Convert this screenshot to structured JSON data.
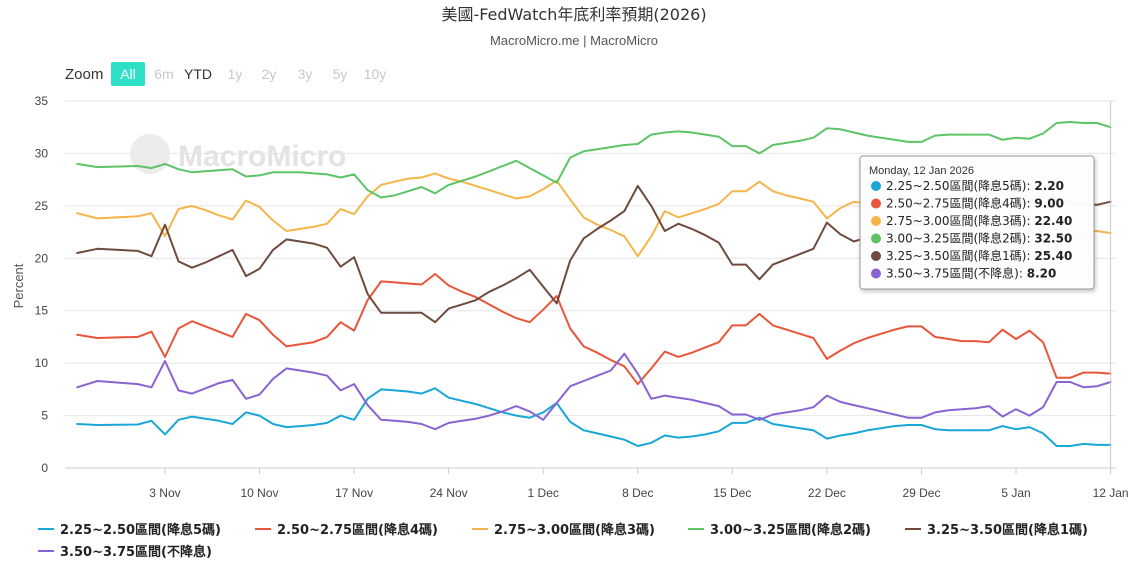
{
  "header": {
    "title": "美國-FedWatch年底利率預期(2026)",
    "subtitle": "MacroMicro.me | MacroMicro"
  },
  "zoom": {
    "label": "Zoom",
    "buttons": [
      {
        "label": "All",
        "active": true,
        "enabled": true
      },
      {
        "label": "6m",
        "active": false,
        "enabled": false
      },
      {
        "label": "YTD",
        "active": false,
        "enabled": true
      },
      {
        "label": "1y",
        "active": false,
        "enabled": false
      },
      {
        "label": "2y",
        "active": false,
        "enabled": false
      },
      {
        "label": "3y",
        "active": false,
        "enabled": false
      },
      {
        "label": "5y",
        "active": false,
        "enabled": false
      },
      {
        "label": "10y",
        "active": false,
        "enabled": false
      }
    ]
  },
  "watermark": "MacroMicro",
  "tooltip": {
    "date": "Monday, 12 Jan 2026",
    "rows": [
      {
        "name": "2.25~2.50區間(降息5碼)",
        "value": "2.20"
      },
      {
        "name": "2.50~2.75區間(降息4碼)",
        "value": "9.00"
      },
      {
        "name": "2.75~3.00區間(降息3碼)",
        "value": "22.40"
      },
      {
        "name": "3.00~3.25區間(降息2碼)",
        "value": "32.50"
      },
      {
        "name": "3.25~3.50區間(降息1碼)",
        "value": "25.40"
      },
      {
        "name": "3.50~3.75區間(不降息)",
        "value": "8.20"
      }
    ]
  },
  "chart_data": {
    "type": "line",
    "title": "美國-FedWatch年底利率預期(2026)",
    "xlabel": "",
    "ylabel": "Percent",
    "ylim": [
      0,
      35
    ],
    "yticks": [
      0,
      5,
      10,
      15,
      20,
      25,
      30,
      35
    ],
    "xlim": [
      -5.4,
      72.4
    ],
    "x_ticks": [
      {
        "label": "3 Nov",
        "day": 2
      },
      {
        "label": "10 Nov",
        "day": 9
      },
      {
        "label": "17 Nov",
        "day": 16
      },
      {
        "label": "24 Nov",
        "day": 23
      },
      {
        "label": "1 Dec",
        "day": 30
      },
      {
        "label": "8 Dec",
        "day": 37
      },
      {
        "label": "15 Dec",
        "day": 44
      },
      {
        "label": "22 Dec",
        "day": 51
      },
      {
        "label": "29 Dec",
        "day": 58
      },
      {
        "label": "5 Jan",
        "day": 65
      },
      {
        "label": "12 Jan",
        "day": 72
      }
    ],
    "x": [
      -4.5,
      -3,
      0,
      1,
      2,
      3,
      4,
      5,
      6,
      7,
      8,
      9,
      10,
      11,
      12,
      13,
      14,
      15,
      16,
      17,
      18,
      19,
      20,
      21,
      22,
      23,
      24,
      25,
      26,
      27,
      28,
      29,
      30,
      31,
      32,
      33,
      34,
      35,
      36,
      37,
      38,
      39,
      40,
      41,
      42,
      43,
      44,
      45,
      46,
      47,
      48,
      49,
      50,
      51,
      52,
      53,
      54,
      55,
      56,
      57,
      58,
      59,
      60,
      61,
      62,
      63,
      64,
      65,
      66,
      67,
      68,
      69,
      70,
      71,
      72
    ],
    "series": [
      {
        "name": "2.25~2.50區間(降息5碼)",
        "color": "#1aa6d6",
        "values": [
          4.2,
          4.1,
          4.15,
          4.5,
          3.2,
          4.6,
          4.9,
          4.7,
          4.5,
          4.2,
          5.3,
          5.0,
          4.2,
          3.9,
          4.0,
          4.1,
          4.3,
          5.0,
          4.6,
          6.6,
          7.5,
          7.4,
          7.3,
          7.1,
          7.6,
          6.7,
          6.4,
          6.1,
          5.7,
          5.3,
          5.0,
          4.8,
          5.3,
          6.2,
          4.4,
          3.6,
          3.3,
          3.0,
          2.7,
          2.1,
          2.4,
          3.1,
          2.9,
          3.0,
          3.2,
          3.5,
          4.3,
          4.3,
          4.8,
          4.2,
          4.0,
          3.8,
          3.6,
          2.8,
          3.1,
          3.3,
          3.6,
          3.8,
          4.0,
          4.1,
          4.1,
          3.7,
          3.6,
          3.6,
          3.6,
          3.6,
          4.0,
          3.7,
          3.9,
          3.3,
          2.1,
          2.1,
          2.3,
          2.2,
          2.2
        ]
      },
      {
        "name": "2.50~2.75區間(降息4碼)",
        "color": "#e8553b",
        "values": [
          12.7,
          12.4,
          12.5,
          13.0,
          10.6,
          13.3,
          14.0,
          13.5,
          13.0,
          12.5,
          14.7,
          14.1,
          12.7,
          11.6,
          11.8,
          12.0,
          12.5,
          13.9,
          13.1,
          16.0,
          17.8,
          17.7,
          17.6,
          17.5,
          18.5,
          17.4,
          16.8,
          16.3,
          15.6,
          14.9,
          14.3,
          13.9,
          15.1,
          16.4,
          13.3,
          11.6,
          11.0,
          10.3,
          9.7,
          8.0,
          9.5,
          11.1,
          10.6,
          11.0,
          11.5,
          12.0,
          13.6,
          13.6,
          14.7,
          13.6,
          13.2,
          12.8,
          12.4,
          10.4,
          11.2,
          11.9,
          12.4,
          12.8,
          13.2,
          13.5,
          13.5,
          12.5,
          12.3,
          12.1,
          12.1,
          12.0,
          13.2,
          12.3,
          13.1,
          12.0,
          8.6,
          8.6,
          9.1,
          9.1,
          9.0
        ]
      },
      {
        "name": "2.75~3.00區間(降息3碼)",
        "color": "#f5b54a",
        "values": [
          24.3,
          23.8,
          24.0,
          24.3,
          22.1,
          24.7,
          25.0,
          24.6,
          24.1,
          23.7,
          25.5,
          24.9,
          23.6,
          22.6,
          22.8,
          23.0,
          23.3,
          24.7,
          24.2,
          25.9,
          27.0,
          27.3,
          27.6,
          27.7,
          28.1,
          27.6,
          27.3,
          26.9,
          26.5,
          26.1,
          25.7,
          25.9,
          26.6,
          27.4,
          25.6,
          23.9,
          23.2,
          22.7,
          22.1,
          20.2,
          22.1,
          24.5,
          23.9,
          24.3,
          24.7,
          25.2,
          26.4,
          26.4,
          27.3,
          26.4,
          26.0,
          25.7,
          25.4,
          23.8,
          24.8,
          25.4,
          25.2,
          25.0,
          24.8,
          24.5,
          24.5,
          23.6,
          23.3,
          23.1,
          23.1,
          23.0,
          23.8,
          23.1,
          23.3,
          22.4,
          22.4,
          22.4,
          22.5,
          22.6,
          22.4
        ]
      },
      {
        "name": "3.00~3.25區間(降息2碼)",
        "color": "#5cc466",
        "values": [
          29.0,
          28.7,
          28.8,
          28.6,
          29.0,
          28.5,
          28.2,
          28.3,
          28.4,
          28.5,
          27.8,
          27.9,
          28.2,
          28.2,
          28.2,
          28.1,
          28.0,
          27.7,
          28.0,
          26.5,
          25.8,
          26.0,
          26.4,
          26.8,
          26.2,
          27.0,
          27.4,
          27.8,
          28.3,
          28.8,
          29.3,
          28.6,
          27.9,
          27.2,
          29.6,
          30.2,
          30.4,
          30.6,
          30.8,
          30.9,
          31.8,
          32.0,
          32.1,
          32.0,
          31.8,
          31.6,
          30.7,
          30.7,
          30.0,
          30.8,
          31.0,
          31.2,
          31.5,
          32.4,
          32.3,
          32.0,
          31.7,
          31.5,
          31.3,
          31.1,
          31.1,
          31.7,
          31.8,
          31.8,
          31.8,
          31.8,
          31.3,
          31.5,
          31.4,
          31.9,
          32.9,
          33.0,
          32.9,
          32.9,
          32.5
        ]
      },
      {
        "name": "3.25~3.50區間(降息1碼)",
        "color": "#6e4b3e",
        "values": [
          20.5,
          20.9,
          20.7,
          20.2,
          23.2,
          19.7,
          19.1,
          19.6,
          20.2,
          20.8,
          18.3,
          19.0,
          20.8,
          21.8,
          21.6,
          21.4,
          21.0,
          19.2,
          20.1,
          16.6,
          14.8,
          14.8,
          14.8,
          14.8,
          13.9,
          15.2,
          15.6,
          16.0,
          16.8,
          17.4,
          18.1,
          18.9,
          17.3,
          15.7,
          19.8,
          21.9,
          22.8,
          23.6,
          24.5,
          26.9,
          25.0,
          22.6,
          23.3,
          22.8,
          22.2,
          21.5,
          19.4,
          19.4,
          18.0,
          19.4,
          19.9,
          20.4,
          20.9,
          23.4,
          22.3,
          21.6,
          22.0,
          22.4,
          22.8,
          23.2,
          23.2,
          24.4,
          24.8,
          25.0,
          25.0,
          25.1,
          25.3,
          25.4,
          25.3,
          25.4,
          25.4,
          25.4,
          25.1,
          25.1,
          25.4
        ]
      },
      {
        "name": "3.50~3.75區間(不降息)",
        "color": "#8a63d2",
        "values": [
          7.7,
          8.3,
          8.0,
          7.7,
          10.2,
          7.4,
          7.1,
          7.6,
          8.1,
          8.4,
          6.6,
          7.0,
          8.5,
          9.5,
          9.3,
          9.1,
          8.8,
          7.4,
          8.0,
          6.0,
          4.6,
          4.5,
          4.4,
          4.2,
          3.7,
          4.3,
          4.5,
          4.7,
          5.0,
          5.4,
          5.9,
          5.4,
          4.6,
          6.2,
          7.8,
          8.3,
          8.8,
          9.3,
          10.9,
          9.0,
          6.6,
          6.9,
          6.7,
          6.5,
          6.2,
          5.9,
          5.1,
          5.1,
          4.6,
          5.1,
          5.3,
          5.5,
          5.8,
          6.9,
          6.3,
          6.0,
          5.7,
          5.4,
          5.1,
          4.8,
          4.8,
          5.3,
          5.5,
          5.6,
          5.7,
          5.9,
          4.9,
          5.6,
          5.0,
          5.8,
          8.2,
          8.2,
          7.7,
          7.8,
          8.2
        ]
      }
    ]
  }
}
